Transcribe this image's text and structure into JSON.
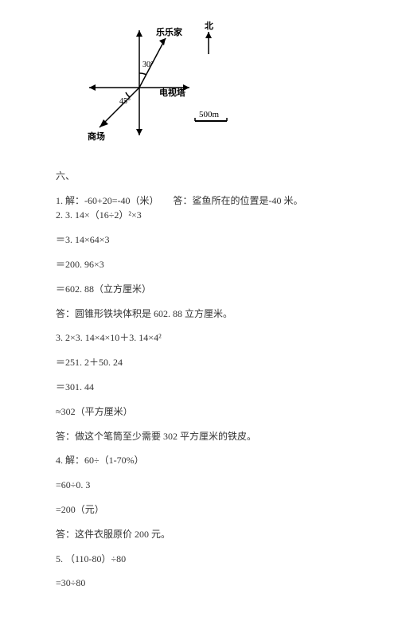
{
  "diagram": {
    "labels": {
      "lele_home": "乐乐家",
      "north": "北",
      "tv_tower": "电视塔",
      "mall": "商场",
      "scale": "500m",
      "angle_top": "30°",
      "angle_bottom": "45°"
    },
    "colors": {
      "stroke": "#000000",
      "text": "#000000",
      "bg": "#ffffff"
    }
  },
  "section_heading": "六、",
  "lines": [
    {
      "t": "1. 解：-60+20=-40（米）　　答：鲨鱼所在的位置是-40 米。",
      "tight": true
    },
    {
      "t": "2. 3. 14×（16÷2）²×3"
    },
    {
      "t": "＝3. 14×64×3"
    },
    {
      "t": "＝200. 96×3"
    },
    {
      "t": "＝602. 88（立方厘米）"
    },
    {
      "t": "答：圆锥形铁块体积是 602. 88 立方厘米。"
    },
    {
      "t": "3. 2×3. 14×4×10＋3. 14×4²"
    },
    {
      "t": "＝251. 2＋50. 24"
    },
    {
      "t": "＝301. 44"
    },
    {
      "t": "≈302（平方厘米）"
    },
    {
      "t": "答：做这个笔筒至少需要 302 平方厘米的铁皮。"
    },
    {
      "t": "4. 解：60÷（1-70%）"
    },
    {
      "t": "=60÷0. 3"
    },
    {
      "t": "=200（元）"
    },
    {
      "t": "答：这件衣服原价 200 元。"
    },
    {
      "t": "5. （110-80）÷80"
    },
    {
      "t": "=30÷80"
    }
  ]
}
